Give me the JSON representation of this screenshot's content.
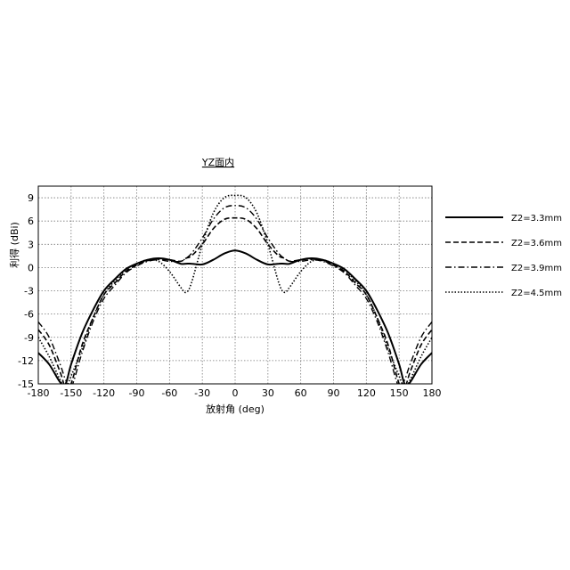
{
  "chart_data": {
    "type": "line",
    "title": "YZ面内",
    "xlabel": "放射角 (deg)",
    "ylabel": "利得 (dBi)",
    "xlim": [
      -180,
      180
    ],
    "ylim": [
      -15,
      10.5
    ],
    "xticks": [
      -180,
      -150,
      -120,
      -90,
      -60,
      -30,
      0,
      30,
      60,
      90,
      120,
      150,
      180
    ],
    "yticks": [
      -15,
      -12,
      -9,
      -6,
      -3,
      0,
      3,
      6,
      9
    ],
    "grid": true,
    "legend_position": "right",
    "x": [
      -180,
      -170,
      -160,
      -155,
      -150,
      -140,
      -130,
      -120,
      -110,
      -100,
      -90,
      -80,
      -70,
      -60,
      -50,
      -45,
      -40,
      -30,
      -20,
      -10,
      0,
      10,
      20,
      30,
      40,
      45,
      50,
      60,
      70,
      80,
      90,
      100,
      110,
      120,
      130,
      140,
      150,
      155,
      160,
      170,
      180
    ],
    "series": [
      {
        "name": "Z2=3.3mm",
        "style": "solid",
        "values": [
          -11.0,
          -12.5,
          -14.8,
          -15.0,
          -12.5,
          -8.5,
          -5.5,
          -3.0,
          -1.5,
          -0.2,
          0.5,
          1.0,
          1.2,
          1.0,
          0.5,
          0.5,
          0.5,
          0.4,
          1.0,
          1.8,
          2.2,
          1.8,
          1.0,
          0.4,
          0.5,
          0.5,
          0.5,
          1.0,
          1.2,
          1.0,
          0.5,
          -0.2,
          -1.5,
          -3.0,
          -5.5,
          -8.5,
          -12.5,
          -15.0,
          -14.8,
          -12.5,
          -11.0
        ]
      },
      {
        "name": "Z2=3.6mm",
        "style": "dashed",
        "values": [
          -8.0,
          -10.0,
          -13.5,
          -15.5,
          -15.0,
          -10.0,
          -6.5,
          -3.5,
          -2.0,
          -0.5,
          0.3,
          0.9,
          1.1,
          1.0,
          0.8,
          1.2,
          1.5,
          3.0,
          5.0,
          6.2,
          6.4,
          6.2,
          5.0,
          3.0,
          1.5,
          1.2,
          0.8,
          1.0,
          1.1,
          0.9,
          0.3,
          -0.5,
          -2.0,
          -3.5,
          -6.5,
          -10.0,
          -15.0,
          -15.5,
          -13.5,
          -10.0,
          -8.0
        ]
      },
      {
        "name": "Z2=3.9mm",
        "style": "dashdot",
        "values": [
          -7.0,
          -9.0,
          -12.5,
          -14.5,
          -15.5,
          -11.0,
          -7.0,
          -4.0,
          -2.3,
          -0.7,
          0.2,
          0.8,
          1.0,
          0.8,
          0.8,
          1.2,
          1.8,
          3.8,
          6.2,
          7.7,
          8.0,
          7.7,
          6.2,
          3.8,
          1.8,
          1.2,
          0.8,
          0.8,
          1.0,
          0.8,
          0.2,
          -0.7,
          -2.3,
          -4.0,
          -7.0,
          -11.0,
          -15.5,
          -14.5,
          -12.5,
          -9.0,
          -7.0
        ]
      },
      {
        "name": "Z2=4.5mm",
        "style": "dotted",
        "values": [
          -9.0,
          -11.5,
          -14.5,
          -15.5,
          -14.0,
          -10.5,
          -6.5,
          -3.5,
          -1.7,
          -0.3,
          0.5,
          1.0,
          0.8,
          -0.5,
          -2.5,
          -3.2,
          -2.0,
          3.0,
          7.0,
          9.0,
          9.3,
          9.0,
          7.0,
          3.0,
          -2.0,
          -3.2,
          -2.5,
          -0.5,
          0.8,
          1.0,
          0.5,
          -0.3,
          -1.7,
          -3.5,
          -6.5,
          -10.5,
          -14.0,
          -15.5,
          -14.5,
          -11.5,
          -9.0
        ]
      }
    ]
  }
}
